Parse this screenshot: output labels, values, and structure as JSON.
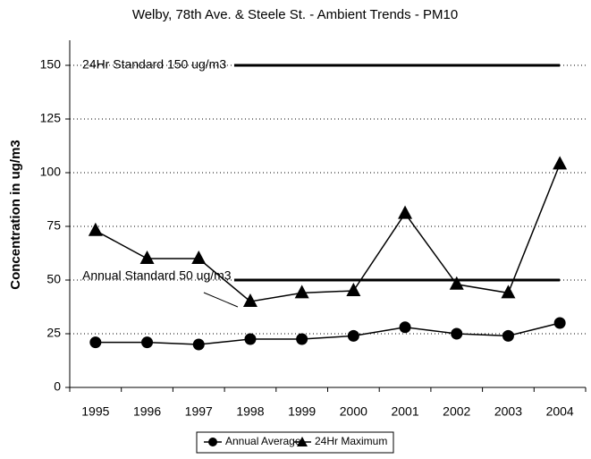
{
  "chart_data": {
    "type": "line",
    "title": "Welby, 78th Ave. & Steele St. - Ambient Trends - PM10",
    "y_label": "Concentration in ug/m3",
    "categories": [
      "1995",
      "1996",
      "1997",
      "1998",
      "1999",
      "2000",
      "2001",
      "2002",
      "2003",
      "2004"
    ],
    "series": [
      {
        "name": "Annual Average",
        "color": "#000000",
        "marker": "circle",
        "values": [
          21,
          21,
          20,
          22.5,
          22.5,
          24,
          28,
          25,
          24,
          30
        ]
      },
      {
        "name": "24Hr Maximum",
        "color": "#000000",
        "marker": "triangle",
        "values": [
          73,
          60,
          60,
          40,
          44,
          45,
          81,
          48,
          44,
          104
        ]
      }
    ],
    "reference_lines": [
      {
        "label": "24Hr Standard 150 ug/m3",
        "value": 150
      },
      {
        "label": "Annual Standard 50 ug/m3",
        "value": 50
      }
    ],
    "ylim": [
      0,
      160
    ],
    "yticks": [
      0,
      25,
      50,
      75,
      100,
      125,
      150
    ],
    "grid": true,
    "legend": "bottom"
  }
}
